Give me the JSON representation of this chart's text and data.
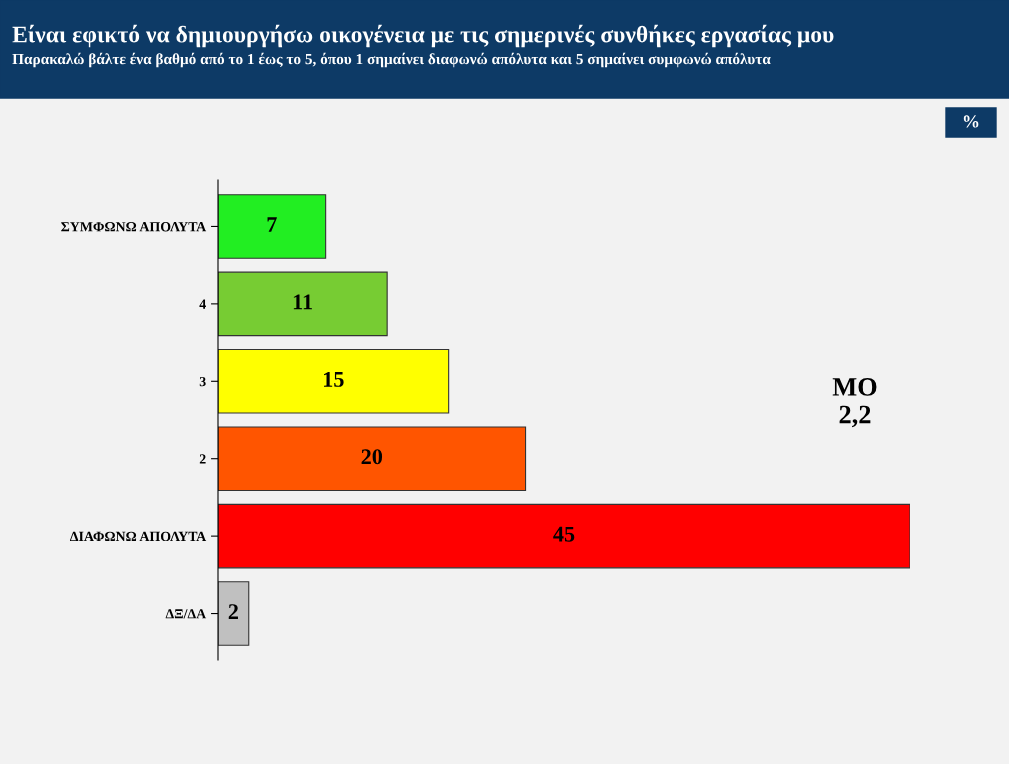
{
  "chart_data": {
    "type": "bar",
    "orientation": "horizontal",
    "title": "Είναι εφικτό να δημιουργήσω οικογένεια με τις σημερινές συνθήκες εργασίας μου",
    "subtitle": "Παρακαλώ βάλτε ένα βαθμό από το 1 έως το 5, όπου 1 σημαίνει διαφωνώ απόλυτα και 5 σημαίνει συμφωνώ απόλυτα",
    "categories": [
      "ΣΥΜΦΩΝΩ ΑΠΟΛΥΤΑ",
      "4",
      "3",
      "2",
      "ΔΙΑΦΩΝΩ ΑΠΟΛΥΤΑ",
      "ΔΞ/ΔΑ"
    ],
    "values": [
      7,
      11,
      15,
      20,
      45,
      2
    ],
    "colors": [
      "#22ee22",
      "#77cc33",
      "#ffff00",
      "#ff5500",
      "#ff0000",
      "#c0c0c0"
    ],
    "data_labels": true,
    "tick_labels": "y",
    "grid": false,
    "legend": false,
    "annotations": [
      "%",
      "ΜΟ\n2,2"
    ]
  }
}
